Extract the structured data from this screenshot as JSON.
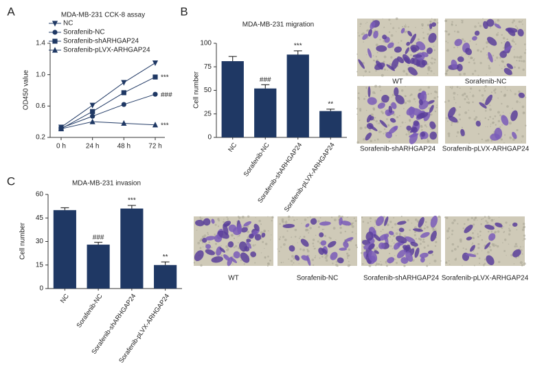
{
  "chart_data": [
    {
      "type": "line",
      "panel": "A",
      "title": "MDA-MB-231 CCK-8 assay",
      "y_label": "OD450 value",
      "categories": [
        "0 h",
        "24 h",
        "48 h",
        "72 h"
      ],
      "ylim": [
        0.2,
        1.4
      ],
      "yticks": [
        0.2,
        0.6,
        {
          "value": 1,
          "label": "1.0"
        },
        1.4
      ],
      "legend": "upper-left",
      "series": [
        {
          "name": "NC",
          "color": "#1f3864",
          "marker": "triangle-down",
          "values": [
            0.33,
            0.61,
            0.9,
            1.15
          ]
        },
        {
          "name": "Sorafenib-NC",
          "color": "#1f3864",
          "marker": "circle",
          "values": [
            0.32,
            0.47,
            0.62,
            0.75
          ],
          "annotation": "###"
        },
        {
          "name": "Sorafenib-shARHGAP24",
          "color": "#1f3864",
          "marker": "square",
          "values": [
            0.31,
            0.53,
            0.77,
            0.97
          ],
          "annotation": "***"
        },
        {
          "name": "Sorafenib-pLVX-ARHGAP24",
          "color": "#1f3864",
          "marker": "triangle",
          "values": [
            0.31,
            0.4,
            0.38,
            0.36
          ],
          "annotation": "***"
        }
      ]
    },
    {
      "type": "bar",
      "panel": "B",
      "title": "MDA-MB-231 migration",
      "y_label": "Cell number",
      "categories": [
        "NC",
        "Sorafenib-NC",
        "Sorafenib-shARHGAP24",
        "Sorafenib-pLVX-ARHGAP24"
      ],
      "values": [
        81,
        52,
        88,
        28
      ],
      "errors": [
        5,
        4,
        4,
        2
      ],
      "annotations": [
        null,
        "###",
        "***",
        "**"
      ],
      "color": "#1f3864",
      "ylim": [
        0,
        100
      ],
      "yticks": [
        0,
        25,
        50,
        75,
        100
      ]
    },
    {
      "type": "bar",
      "panel": "C",
      "title": "MDA-MB-231 invasion",
      "y_label": "Cell number",
      "categories": [
        "NC",
        "Sorafenib-NC",
        "Sorafenib-shARHGAP24",
        "Sorafenib-pLVX-ARHGAP24"
      ],
      "values": [
        50,
        28,
        51,
        15
      ],
      "errors": [
        1.5,
        1.5,
        2,
        2
      ],
      "annotations": [
        null,
        "###",
        "***",
        "**"
      ],
      "color": "#1f3864",
      "ylim": [
        0,
        60
      ],
      "yticks": [
        0,
        15,
        30,
        45,
        60
      ]
    }
  ],
  "micrographs": [
    {
      "panel": "B",
      "labels": [
        "WT",
        "Sorafenib-NC",
        "Sorafenib-shARHGAP24",
        "Sorafenib-pLVX-ARHGAP24"
      ]
    },
    {
      "panel": "C",
      "labels": [
        "WT",
        "Sorafenib-NC",
        "Sorafenib-shARHGAP24",
        "Sorafenib-pLVX-ARHGAP24"
      ]
    }
  ]
}
